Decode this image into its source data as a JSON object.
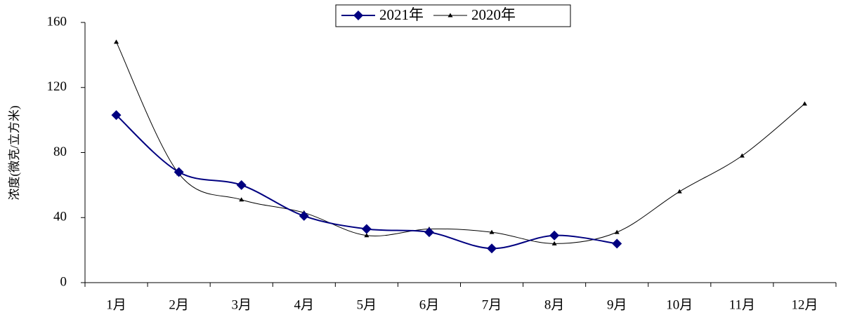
{
  "chart_data": {
    "type": "line",
    "ylabel": "浓度(微克/立方米)",
    "categories": [
      "1月",
      "2月",
      "3月",
      "4月",
      "5月",
      "6月",
      "7月",
      "8月",
      "9月",
      "10月",
      "11月",
      "12月"
    ],
    "series": [
      {
        "name": "2021年",
        "color": "#000080",
        "marker": "diamond",
        "values": [
          103,
          68,
          60,
          41,
          33,
          31,
          21,
          29,
          24,
          null,
          null,
          null
        ]
      },
      {
        "name": "2020年",
        "color": "#000000",
        "marker": "triangle",
        "values": [
          148,
          67,
          51,
          43,
          29,
          33,
          31,
          24,
          31,
          56,
          78,
          110
        ]
      }
    ],
    "ylim": [
      0,
      160
    ],
    "yticks": [
      0,
      40,
      80,
      120,
      160
    ],
    "smooth": true,
    "legend": "top"
  }
}
